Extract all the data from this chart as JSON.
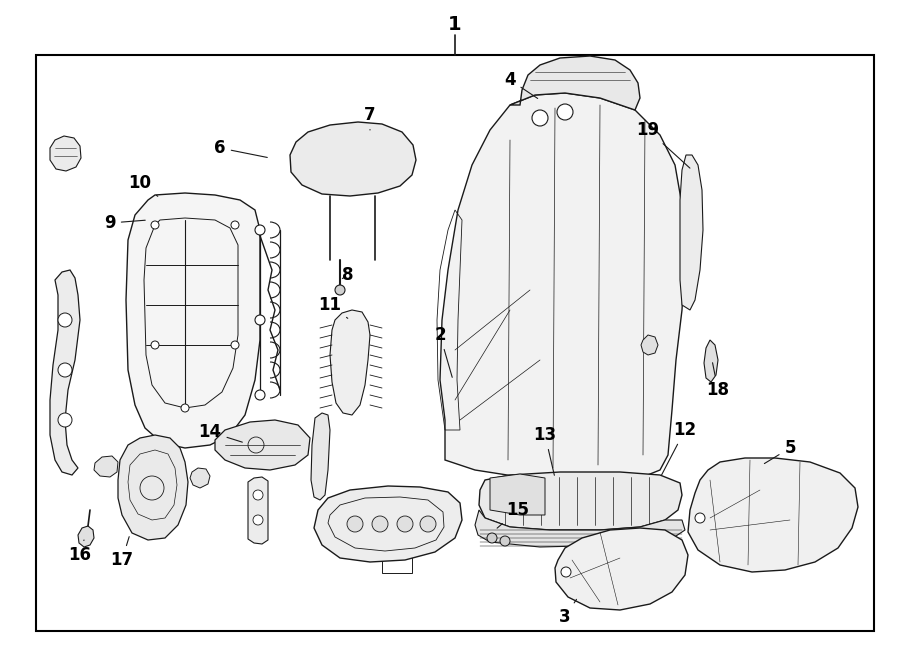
{
  "bg_color": "#ffffff",
  "border_color": "#000000",
  "text_color": "#000000",
  "fig_width": 9.0,
  "fig_height": 6.61,
  "line_color": "#1a1a1a",
  "fill_light": "#f8f8f8",
  "fill_medium": "#eeeeee",
  "border_lw": 1.5,
  "part_lw": 0.8,
  "label_fontsize": 11,
  "label_1_fontsize": 14
}
